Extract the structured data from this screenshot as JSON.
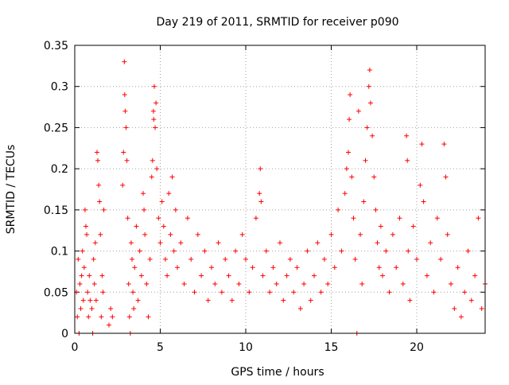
{
  "chart_data": {
    "type": "scatter",
    "title": "Day 219 of 2011, SRMTID for receiver p090",
    "xlabel": "GPS time / hours",
    "ylabel": "SRMTID / TECUs",
    "xlim": [
      0,
      24
    ],
    "ylim": [
      0,
      0.35
    ],
    "xticks": [
      0,
      5,
      10,
      15,
      20
    ],
    "yticks": [
      0,
      0.05,
      0.1,
      0.15,
      0.2,
      0.25,
      0.3,
      0.35
    ],
    "xtick_labels": [
      "0",
      "5",
      "10",
      "15",
      "20"
    ],
    "ytick_labels": [
      "0",
      "0.05",
      "0.1",
      "0.15",
      "0.2",
      "0.25",
      "0.3",
      "0.35"
    ],
    "grid": true,
    "marker": "+",
    "color": "#ff0000",
    "series": [
      {
        "name": "SRMTID",
        "points": [
          [
            0.1,
            0.05
          ],
          [
            0.15,
            0.02
          ],
          [
            0.2,
            0.09
          ],
          [
            0.25,
            0.0
          ],
          [
            0.3,
            0.06
          ],
          [
            0.35,
            0.03
          ],
          [
            0.4,
            0.07
          ],
          [
            0.45,
            0.1
          ],
          [
            0.5,
            0.04
          ],
          [
            0.55,
            0.08
          ],
          [
            0.6,
            0.15
          ],
          [
            0.65,
            0.13
          ],
          [
            0.7,
            0.12
          ],
          [
            0.75,
            0.05
          ],
          [
            0.8,
            0.02
          ],
          [
            0.85,
            0.07
          ],
          [
            0.9,
            0.04
          ],
          [
            1.0,
            0.03
          ],
          [
            1.05,
            0.0
          ],
          [
            1.1,
            0.09
          ],
          [
            1.15,
            0.06
          ],
          [
            1.2,
            0.11
          ],
          [
            1.25,
            0.04
          ],
          [
            1.3,
            0.22
          ],
          [
            1.35,
            0.21
          ],
          [
            1.4,
            0.18
          ],
          [
            1.45,
            0.16
          ],
          [
            1.5,
            0.12
          ],
          [
            1.55,
            0.02
          ],
          [
            1.6,
            0.07
          ],
          [
            1.65,
            0.05
          ],
          [
            1.7,
            0.15
          ],
          [
            2.0,
            0.01
          ],
          [
            2.1,
            0.03
          ],
          [
            2.2,
            0.02
          ],
          [
            2.8,
            0.18
          ],
          [
            2.85,
            0.22
          ],
          [
            2.9,
            0.33
          ],
          [
            2.92,
            0.29
          ],
          [
            2.95,
            0.27
          ],
          [
            3.0,
            0.25
          ],
          [
            3.05,
            0.21
          ],
          [
            3.1,
            0.14
          ],
          [
            3.15,
            0.06
          ],
          [
            3.2,
            0.02
          ],
          [
            3.25,
            0.0
          ],
          [
            3.3,
            0.11
          ],
          [
            3.35,
            0.09
          ],
          [
            3.4,
            0.05
          ],
          [
            3.45,
            0.03
          ],
          [
            3.5,
            0.08
          ],
          [
            3.6,
            0.13
          ],
          [
            3.7,
            0.04
          ],
          [
            3.8,
            0.1
          ],
          [
            3.9,
            0.07
          ],
          [
            4.0,
            0.17
          ],
          [
            4.05,
            0.15
          ],
          [
            4.1,
            0.12
          ],
          [
            4.2,
            0.06
          ],
          [
            4.3,
            0.02
          ],
          [
            4.4,
            0.09
          ],
          [
            4.5,
            0.19
          ],
          [
            4.55,
            0.21
          ],
          [
            4.6,
            0.27
          ],
          [
            4.62,
            0.26
          ],
          [
            4.65,
            0.3
          ],
          [
            4.7,
            0.25
          ],
          [
            4.75,
            0.28
          ],
          [
            4.8,
            0.2
          ],
          [
            4.9,
            0.14
          ],
          [
            5.0,
            0.11
          ],
          [
            5.1,
            0.16
          ],
          [
            5.2,
            0.13
          ],
          [
            5.3,
            0.09
          ],
          [
            5.4,
            0.07
          ],
          [
            5.5,
            0.17
          ],
          [
            5.6,
            0.12
          ],
          [
            5.7,
            0.19
          ],
          [
            5.8,
            0.1
          ],
          [
            5.9,
            0.15
          ],
          [
            6.0,
            0.08
          ],
          [
            6.2,
            0.11
          ],
          [
            6.4,
            0.06
          ],
          [
            6.6,
            0.14
          ],
          [
            6.8,
            0.09
          ],
          [
            7.0,
            0.05
          ],
          [
            7.2,
            0.12
          ],
          [
            7.4,
            0.07
          ],
          [
            7.6,
            0.1
          ],
          [
            7.8,
            0.04
          ],
          [
            8.0,
            0.08
          ],
          [
            8.2,
            0.06
          ],
          [
            8.4,
            0.11
          ],
          [
            8.6,
            0.05
          ],
          [
            8.8,
            0.09
          ],
          [
            9.0,
            0.07
          ],
          [
            9.2,
            0.04
          ],
          [
            9.4,
            0.1
          ],
          [
            9.6,
            0.06
          ],
          [
            9.8,
            0.12
          ],
          [
            10.0,
            0.09
          ],
          [
            10.2,
            0.05
          ],
          [
            10.4,
            0.08
          ],
          [
            10.6,
            0.14
          ],
          [
            10.8,
            0.17
          ],
          [
            10.85,
            0.2
          ],
          [
            10.9,
            0.16
          ],
          [
            11.0,
            0.07
          ],
          [
            11.2,
            0.1
          ],
          [
            11.4,
            0.05
          ],
          [
            11.6,
            0.08
          ],
          [
            11.8,
            0.06
          ],
          [
            12.0,
            0.11
          ],
          [
            12.2,
            0.04
          ],
          [
            12.4,
            0.07
          ],
          [
            12.6,
            0.09
          ],
          [
            12.8,
            0.05
          ],
          [
            13.0,
            0.08
          ],
          [
            13.2,
            0.03
          ],
          [
            13.4,
            0.06
          ],
          [
            13.6,
            0.1
          ],
          [
            13.8,
            0.04
          ],
          [
            14.0,
            0.07
          ],
          [
            14.2,
            0.11
          ],
          [
            14.4,
            0.05
          ],
          [
            14.6,
            0.09
          ],
          [
            14.8,
            0.06
          ],
          [
            15.0,
            0.12
          ],
          [
            15.2,
            0.08
          ],
          [
            15.4,
            0.15
          ],
          [
            15.6,
            0.1
          ],
          [
            15.8,
            0.17
          ],
          [
            15.9,
            0.2
          ],
          [
            16.0,
            0.22
          ],
          [
            16.05,
            0.26
          ],
          [
            16.1,
            0.29
          ],
          [
            16.2,
            0.19
          ],
          [
            16.3,
            0.14
          ],
          [
            16.4,
            0.09
          ],
          [
            16.5,
            0.0
          ],
          [
            16.6,
            0.27
          ],
          [
            16.7,
            0.12
          ],
          [
            16.8,
            0.06
          ],
          [
            16.9,
            0.16
          ],
          [
            17.0,
            0.21
          ],
          [
            17.1,
            0.25
          ],
          [
            17.2,
            0.3
          ],
          [
            17.25,
            0.32
          ],
          [
            17.3,
            0.28
          ],
          [
            17.4,
            0.24
          ],
          [
            17.5,
            0.19
          ],
          [
            17.6,
            0.15
          ],
          [
            17.7,
            0.11
          ],
          [
            17.8,
            0.08
          ],
          [
            17.9,
            0.13
          ],
          [
            18.0,
            0.07
          ],
          [
            18.2,
            0.1
          ],
          [
            18.4,
            0.05
          ],
          [
            18.6,
            0.12
          ],
          [
            18.8,
            0.08
          ],
          [
            19.0,
            0.14
          ],
          [
            19.2,
            0.06
          ],
          [
            19.4,
            0.24
          ],
          [
            19.45,
            0.21
          ],
          [
            19.5,
            0.1
          ],
          [
            19.6,
            0.04
          ],
          [
            19.8,
            0.13
          ],
          [
            20.0,
            0.09
          ],
          [
            20.2,
            0.18
          ],
          [
            20.3,
            0.23
          ],
          [
            20.4,
            0.16
          ],
          [
            20.6,
            0.07
          ],
          [
            20.8,
            0.11
          ],
          [
            21.0,
            0.05
          ],
          [
            21.2,
            0.14
          ],
          [
            21.4,
            0.09
          ],
          [
            21.6,
            0.23
          ],
          [
            21.7,
            0.19
          ],
          [
            21.8,
            0.12
          ],
          [
            22.0,
            0.06
          ],
          [
            22.2,
            0.03
          ],
          [
            22.4,
            0.08
          ],
          [
            22.6,
            0.02
          ],
          [
            22.8,
            0.05
          ],
          [
            23.0,
            0.1
          ],
          [
            23.2,
            0.04
          ],
          [
            23.4,
            0.07
          ],
          [
            23.6,
            0.14
          ],
          [
            23.8,
            0.03
          ],
          [
            24.0,
            0.06
          ]
        ]
      }
    ]
  }
}
